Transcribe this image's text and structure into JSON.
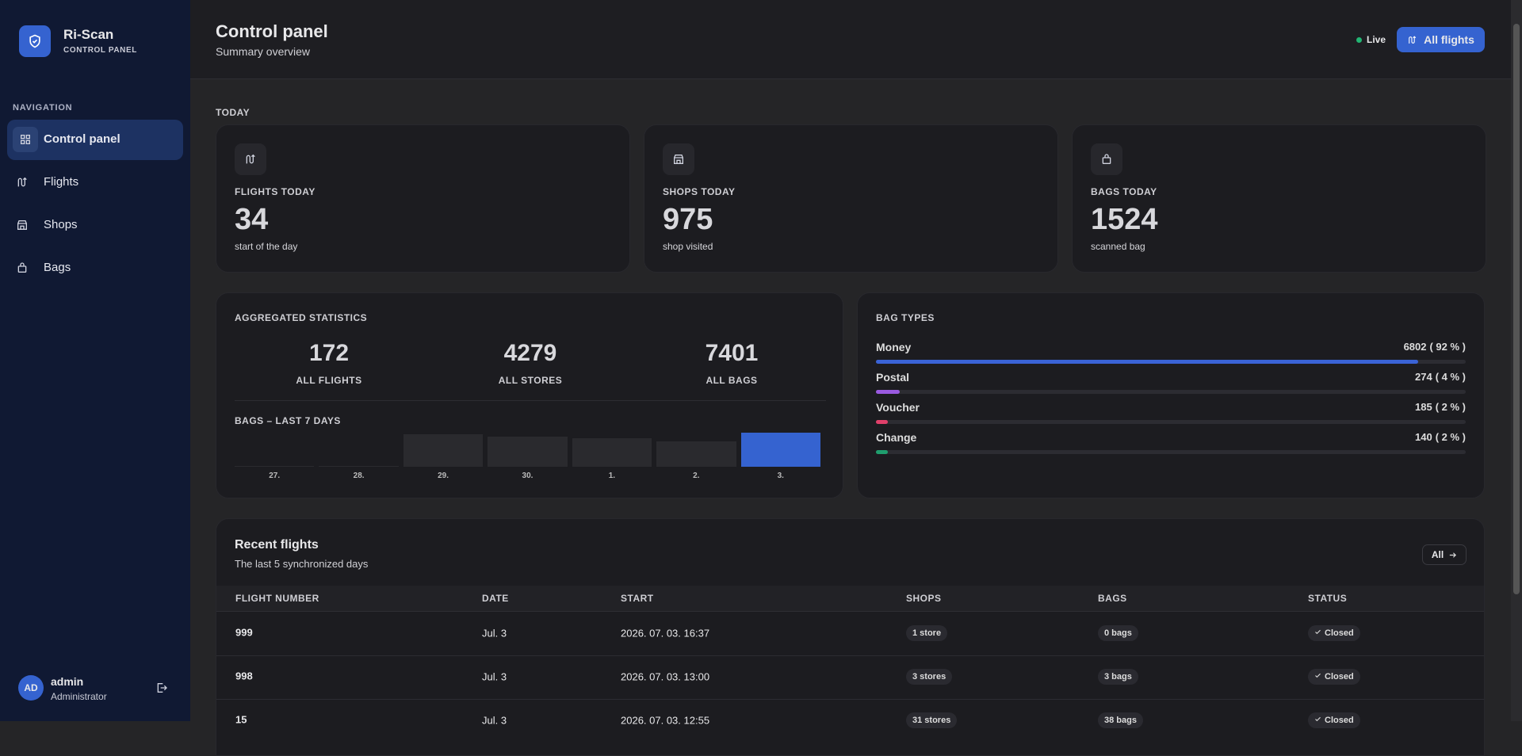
{
  "sidebar": {
    "brand": "Ri-Scan",
    "brand_sub": "CONTROL PANEL",
    "nav_heading": "NAVIGATION",
    "nav": [
      "Control panel",
      "Flights",
      "Shops",
      "Bags"
    ],
    "user": {
      "initials": "AD",
      "name": "admin",
      "role": "Administrator"
    }
  },
  "header": {
    "title": "Control panel",
    "subtitle": "Summary overview",
    "status": "Live",
    "button": "All flights"
  },
  "today": {
    "heading": "TODAY",
    "cards": [
      {
        "label": "FLIGHTS TODAY",
        "value": 34,
        "caption": "start of the day"
      },
      {
        "label": "SHOPS TODAY",
        "value": 975,
        "caption": "shop visited"
      },
      {
        "label": "BAGS TODAY",
        "value": 1524,
        "caption": "scanned bag"
      }
    ]
  },
  "aggregated": {
    "title": "AGGREGATED STATISTICS",
    "stats": [
      {
        "value": 172,
        "label": "ALL FLIGHTS"
      },
      {
        "value": 4279,
        "label": "ALL STORES"
      },
      {
        "value": 7401,
        "label": "ALL BAGS"
      }
    ]
  },
  "chart_data": {
    "type": "bar",
    "title": "BAGS – LAST 7 DAYS",
    "categories": [
      "27.",
      "28.",
      "29.",
      "30.",
      "1.",
      "2.",
      "3."
    ],
    "values": [
      20,
      30,
      1450,
      1330,
      1260,
      1140,
      1524
    ],
    "ylim": [
      0,
      1524
    ],
    "colors": [
      "#2a2a2e",
      "#2a2a2e",
      "#2a2a2e",
      "#2a2a2e",
      "#2a2a2e",
      "#2a2a2e",
      "#3563d0"
    ]
  },
  "bag_types": {
    "title": "BAG TYPES",
    "items": [
      {
        "name": "Money",
        "value": 6802,
        "percent": 92,
        "label": "( 92 % )",
        "color": "#3a63d6"
      },
      {
        "name": "Postal",
        "value": 274,
        "percent": 4,
        "label": "( 4 % )",
        "color": "#9a5ae0"
      },
      {
        "name": "Voucher",
        "value": 185,
        "percent": 2,
        "label": "( 2 % )",
        "color": "#e0406a"
      },
      {
        "name": "Change",
        "value": 140,
        "percent": 2,
        "label": "( 2 % )",
        "color": "#1f9e6e"
      }
    ]
  },
  "recent_flights": {
    "title": "Recent flights",
    "subtitle": "The last 5 synchronized days",
    "button": "All",
    "columns": [
      "FLIGHT NUMBER",
      "DATE",
      "START",
      "SHOPS",
      "BAGS",
      "STATUS"
    ],
    "rows": [
      [
        "999",
        "Jul. 3",
        "2026. 07. 03. 16:37",
        "1 store",
        "0 bags",
        "Closed"
      ],
      [
        "998",
        "Jul. 3",
        "2026. 07. 03. 13:00",
        "3 stores",
        "3 bags",
        "Closed"
      ],
      [
        "15",
        "Jul. 3",
        "2026. 07. 03. 12:55",
        "31 stores",
        "38 bags",
        "Closed"
      ]
    ]
  }
}
